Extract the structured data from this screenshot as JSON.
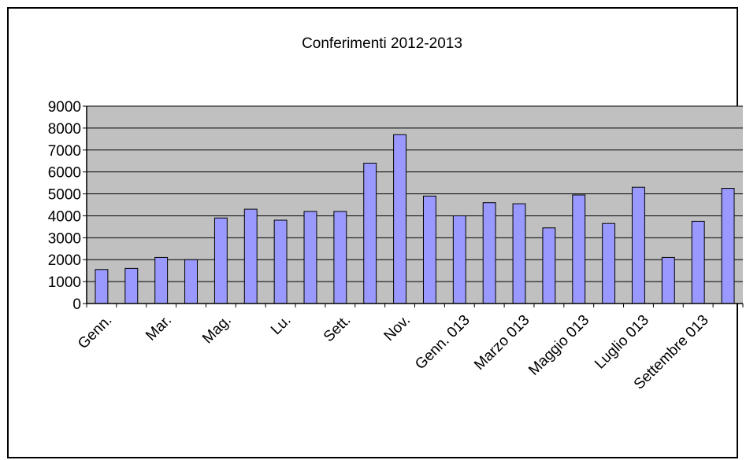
{
  "chart_data": {
    "type": "bar",
    "title": "Conferimenti 2012-2013",
    "xlabel": "",
    "ylabel": "",
    "ylim": [
      0,
      9000
    ],
    "yticks": [
      0,
      1000,
      2000,
      3000,
      4000,
      5000,
      6000,
      7000,
      8000,
      9000
    ],
    "grid": true,
    "legend": "none",
    "colors": {
      "bar": "#9999ff",
      "plot_bg": "#c0c0c0"
    },
    "categories": [
      "Genn.",
      "",
      "Mar.",
      "",
      "Mag.",
      "",
      "Lu.",
      "",
      "Sett.",
      "",
      "Nov.",
      "",
      "Genn. 013",
      "",
      "Marzo 013",
      "",
      "Maggio 013",
      "",
      "Luglio 013",
      "",
      "Settembre 013",
      ""
    ],
    "values": [
      1550,
      1600,
      2100,
      2000,
      3900,
      4300,
      3800,
      4200,
      4200,
      6400,
      7700,
      4900,
      4000,
      4600,
      4550,
      3450,
      4950,
      3650,
      5300,
      2100,
      3750,
      5250
    ]
  }
}
